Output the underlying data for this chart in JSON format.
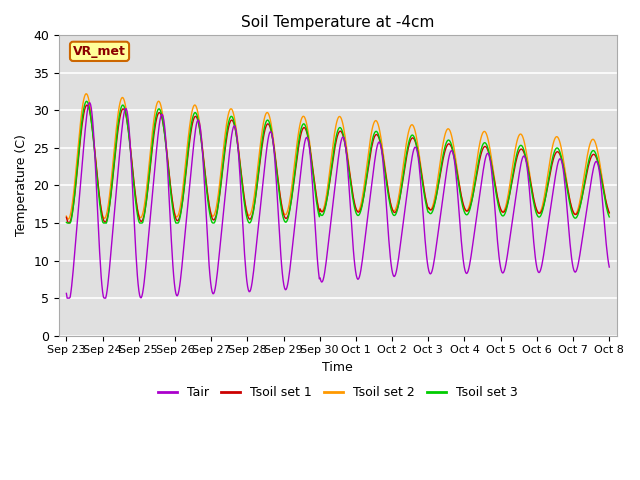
{
  "title": "Soil Temperature at -4cm",
  "xlabel": "Time",
  "ylabel": "Temperature (C)",
  "ylim": [
    0,
    40
  ],
  "background_color": "#e0e0e0",
  "plot_bg_color": "#e0e0e0",
  "fig_bg_color": "#ffffff",
  "grid_color": "#ffffff",
  "colors": {
    "Tair": "#aa00cc",
    "Tsoil set 1": "#cc0000",
    "Tsoil set 2": "#ff9900",
    "Tsoil set 3": "#00cc00"
  },
  "legend_label": "VR_met",
  "legend_box_color": "#ffff99",
  "legend_box_edge": "#cc6600",
  "yticks": [
    0,
    5,
    10,
    15,
    20,
    25,
    30,
    35,
    40
  ],
  "xtick_labels": [
    "Sep 23",
    "Sep 24",
    "Sep 25",
    "Sep 26",
    "Sep 27",
    "Sep 28",
    "Sep 29",
    "Sep 30",
    "Oct 1",
    "Oct 2",
    "Oct 3",
    "Oct 4",
    "Oct 5",
    "Oct 6",
    "Oct 7",
    "Oct 8"
  ],
  "n_days": 15,
  "pts_per_day": 48
}
